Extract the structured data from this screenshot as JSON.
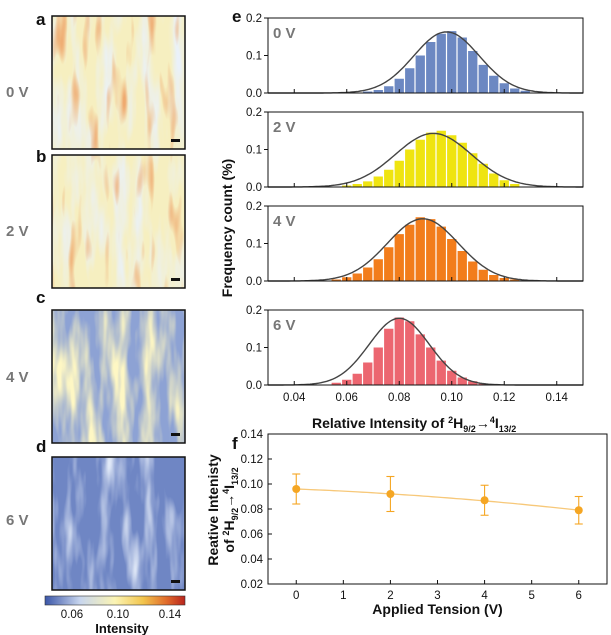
{
  "panels": {
    "a": {
      "letter": "a",
      "voltage": "0 V"
    },
    "b": {
      "letter": "b",
      "voltage": "2 V"
    },
    "c": {
      "letter": "c",
      "voltage": "4 V"
    },
    "d": {
      "letter": "d",
      "voltage": "6 V"
    },
    "e": {
      "letter": "e"
    },
    "f": {
      "letter": "f"
    }
  },
  "colorbar": {
    "title": "Intensity",
    "ticks": [
      "0.06",
      "0.10",
      "0.14"
    ],
    "colors": [
      "#3b56a8",
      "#c8d6ee",
      "#fbf4b4",
      "#f2c54d",
      "#e06a2b",
      "#b8241d"
    ]
  },
  "chart_data": [
    {
      "type": "bar",
      "panel": "e",
      "ylabel": "Frequency count (%)",
      "xlabel": "Relative Intensity of ²H₉/₂→⁴I₁₃/₂",
      "xlim": [
        0.03,
        0.15
      ],
      "xticks": [
        "0.04",
        "0.06",
        "0.08",
        "0.10",
        "0.12",
        "0.14"
      ],
      "bin_width": 0.004,
      "subplots": [
        {
          "label": "0 V",
          "color": "#6c88c2",
          "ylim": [
            0,
            0.2
          ],
          "yticks": [
            "0.0",
            "0.1",
            "0.2"
          ],
          "bins": [
            0.068,
            0.072,
            0.076,
            0.08,
            0.084,
            0.088,
            0.092,
            0.096,
            0.1,
            0.104,
            0.108,
            0.112,
            0.116,
            0.12,
            0.124,
            0.128
          ],
          "values": [
            0.004,
            0.008,
            0.018,
            0.038,
            0.066,
            0.1,
            0.136,
            0.158,
            0.165,
            0.148,
            0.112,
            0.075,
            0.046,
            0.026,
            0.012,
            0.006
          ],
          "fit": {
            "mean": 0.098,
            "sd": 0.0125,
            "peak": 0.163
          }
        },
        {
          "label": "2 V",
          "color": "#efe411",
          "ylim": [
            0,
            0.2
          ],
          "yticks": [
            "0.0",
            "0.1",
            "0.2"
          ],
          "bins": [
            0.06,
            0.064,
            0.068,
            0.072,
            0.076,
            0.08,
            0.084,
            0.088,
            0.092,
            0.096,
            0.1,
            0.104,
            0.108,
            0.112,
            0.116,
            0.12,
            0.124
          ],
          "values": [
            0.004,
            0.008,
            0.015,
            0.028,
            0.046,
            0.07,
            0.1,
            0.126,
            0.145,
            0.15,
            0.138,
            0.118,
            0.09,
            0.062,
            0.036,
            0.018,
            0.008
          ],
          "fit": {
            "mean": 0.093,
            "sd": 0.0145,
            "peak": 0.143
          }
        },
        {
          "label": "4 V",
          "color": "#f27d1c",
          "ylim": [
            0,
            0.2
          ],
          "yticks": [
            "0.0",
            "0.1",
            "0.2"
          ],
          "bins": [
            0.056,
            0.06,
            0.064,
            0.068,
            0.072,
            0.076,
            0.08,
            0.084,
            0.088,
            0.092,
            0.096,
            0.1,
            0.104,
            0.108,
            0.112,
            0.116,
            0.12,
            0.124
          ],
          "values": [
            0.004,
            0.01,
            0.02,
            0.036,
            0.058,
            0.09,
            0.125,
            0.15,
            0.17,
            0.165,
            0.145,
            0.112,
            0.08,
            0.052,
            0.03,
            0.016,
            0.008,
            0.004
          ],
          "fit": {
            "mean": 0.089,
            "sd": 0.0135,
            "peak": 0.166
          }
        },
        {
          "label": "6 V",
          "color": "#ec6670",
          "ylim": [
            0,
            0.2
          ],
          "yticks": [
            "0.0",
            "0.1",
            "0.2"
          ],
          "bins": [
            0.056,
            0.06,
            0.064,
            0.068,
            0.072,
            0.076,
            0.08,
            0.084,
            0.088,
            0.092,
            0.096,
            0.1,
            0.104,
            0.108,
            0.112
          ],
          "values": [
            0.006,
            0.014,
            0.03,
            0.06,
            0.1,
            0.15,
            0.18,
            0.17,
            0.135,
            0.1,
            0.065,
            0.038,
            0.02,
            0.01,
            0.004
          ],
          "fit": {
            "mean": 0.08,
            "sd": 0.0115,
            "peak": 0.178
          }
        }
      ]
    },
    {
      "type": "scatter",
      "panel": "f",
      "xlabel": "Applied Tension (V)",
      "ylabel": "Reative Intenisty of ²H₉/₂→⁴I₁₃/₂",
      "xlim": [
        -0.6,
        6.6
      ],
      "ylim": [
        0.02,
        0.14
      ],
      "xticks": [
        "0",
        "1",
        "2",
        "3",
        "4",
        "5",
        "6"
      ],
      "yticks": [
        "0.02",
        "0.04",
        "0.06",
        "0.08",
        "0.10",
        "0.12",
        "0.14"
      ],
      "x": [
        0,
        2,
        4,
        6
      ],
      "y": [
        0.096,
        0.092,
        0.087,
        0.079
      ],
      "yerr": [
        0.012,
        0.014,
        0.012,
        0.011
      ],
      "color": "#f5a623"
    }
  ]
}
